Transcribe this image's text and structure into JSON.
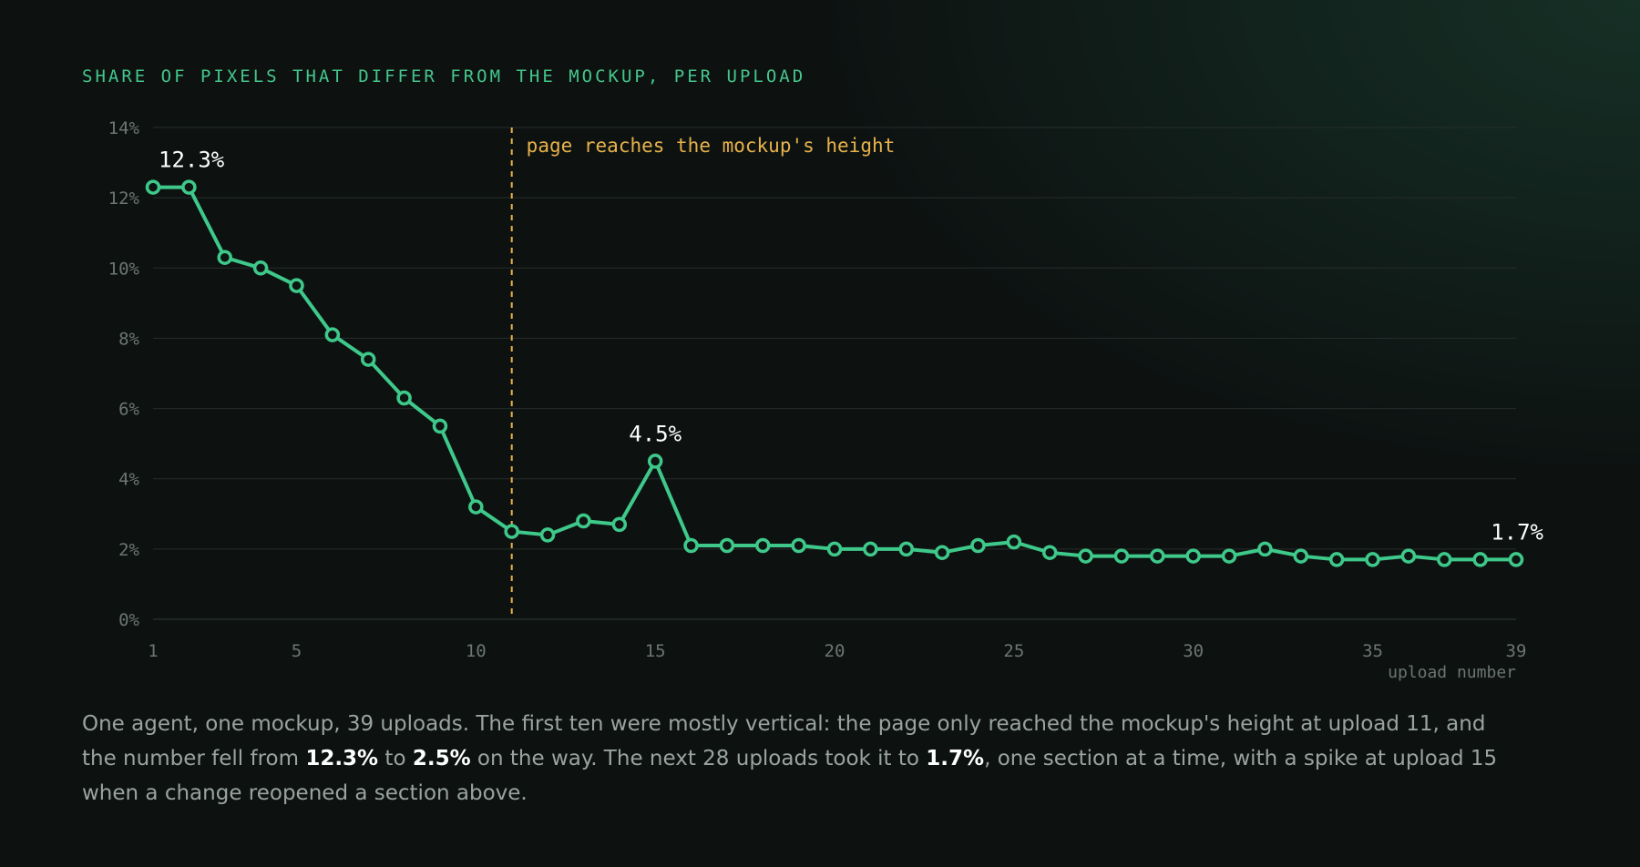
{
  "title": "SHARE OF PIXELS THAT DIFFER FROM THE MOCKUP, PER UPLOAD",
  "caption": {
    "p1": "One agent, one mockup, 39 uploads. The first ten were mostly vertical: the page only reached the mockup's height at upload 11, and the number fell from ",
    "v1": "12.3%",
    "p2": " to ",
    "v2": "2.5%",
    "p3": " on the way. The next 28 uploads took it to ",
    "v3": "1.7%",
    "p4": ", one section at a time, with a spike at upload 15 when a change reopened a section above."
  },
  "colors": {
    "line": "#3ec98a",
    "marker_fill": "#0e1412",
    "annotation": "#e8b24a",
    "grid": "#262d2b",
    "tick": "#6c7572",
    "label": "#ffffff"
  },
  "chart_data": {
    "type": "line",
    "xlabel": "upload number",
    "ylabel": "",
    "xlim": [
      1,
      39
    ],
    "ylim": [
      0,
      14
    ],
    "x_ticks": [
      1,
      5,
      10,
      15,
      20,
      25,
      30,
      35,
      39
    ],
    "y_ticks": [
      0,
      2,
      4,
      6,
      8,
      10,
      12,
      14
    ],
    "y_tick_labels": [
      "0%",
      "2%",
      "4%",
      "6%",
      "8%",
      "10%",
      "12%",
      "14%"
    ],
    "grid": true,
    "series": [
      {
        "x": [
          1,
          2,
          3,
          4,
          5,
          6,
          7,
          8,
          9,
          10,
          11,
          12,
          13,
          14,
          15,
          16,
          17,
          18,
          19,
          20,
          21,
          22,
          23,
          24,
          25,
          26,
          27,
          28,
          29,
          30,
          31,
          32,
          33,
          34,
          35,
          36,
          37,
          38,
          39
        ],
        "values": [
          12.3,
          12.3,
          10.3,
          10.0,
          9.5,
          8.1,
          7.4,
          6.3,
          5.5,
          3.2,
          2.5,
          2.4,
          2.8,
          2.7,
          4.5,
          2.1,
          2.1,
          2.1,
          2.1,
          2.0,
          2.0,
          2.0,
          1.9,
          2.1,
          2.2,
          1.9,
          1.8,
          1.8,
          1.8,
          1.8,
          1.8,
          2.0,
          1.8,
          1.7,
          1.7,
          1.8,
          1.7,
          1.7,
          1.7
        ]
      }
    ],
    "point_labels": [
      {
        "x": 1,
        "y": 12.3,
        "text": "12.3%"
      },
      {
        "x": 15,
        "y": 4.5,
        "text": "4.5%"
      },
      {
        "x": 39,
        "y": 1.7,
        "text": "1.7%"
      }
    ],
    "annotations": [
      {
        "type": "vline",
        "x": 11,
        "text": "page reaches the mockup's height"
      }
    ]
  }
}
